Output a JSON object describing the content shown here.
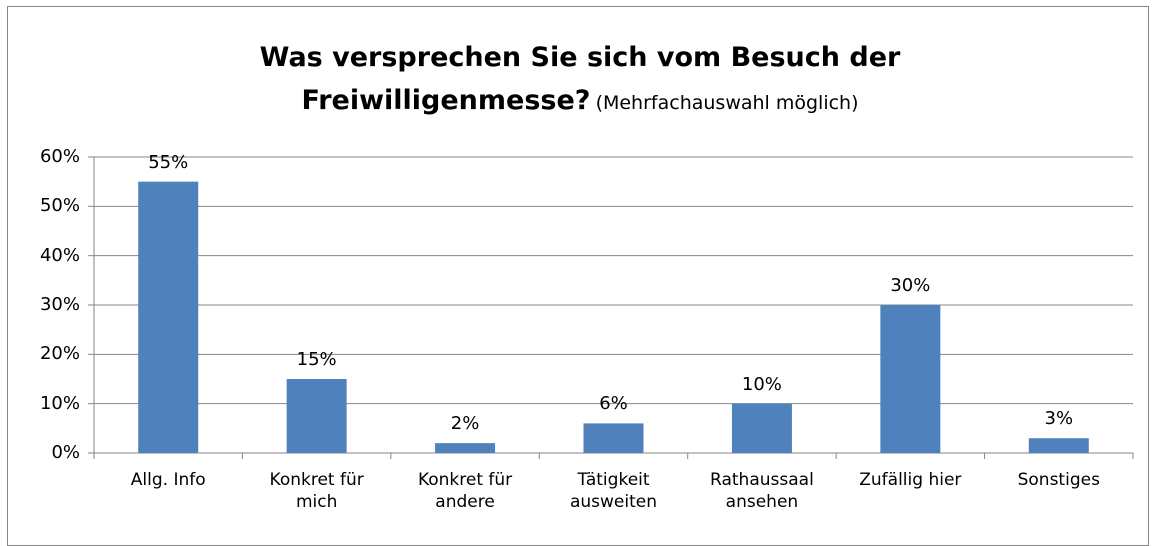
{
  "chart_data": {
    "type": "bar",
    "title": "Was versprechen Sie sich vom Besuch der Freiwilligenmesse?",
    "subtitle": "(Mehrfachauswahl möglich)",
    "categories": [
      "Allg. Info",
      "Konkret für mich",
      "Konkret für andere",
      "Tätigkeit ausweiten",
      "Rathaussaal ansehen",
      "Zufällig hier",
      "Sonstiges"
    ],
    "values": [
      55,
      15,
      2,
      6,
      10,
      30,
      3
    ],
    "value_labels": [
      "55%",
      "15%",
      "2%",
      "6%",
      "10%",
      "30%",
      "3%"
    ],
    "color": "#4f81bd",
    "ylim": [
      0,
      60
    ],
    "yticks": [
      {
        "value": 0,
        "label": "0%"
      },
      {
        "value": 10,
        "label": "10%"
      },
      {
        "value": 20,
        "label": "20%"
      },
      {
        "value": 30,
        "label": "30%"
      },
      {
        "value": 40,
        "label": "40%"
      },
      {
        "value": 50,
        "label": "50%"
      },
      {
        "value": 60,
        "label": "60%"
      }
    ],
    "grid": true
  }
}
